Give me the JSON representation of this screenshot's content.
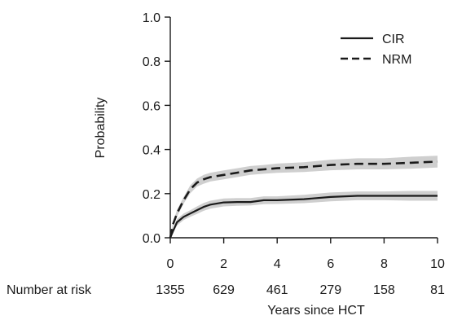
{
  "chart_data": {
    "type": "line",
    "ylabel": "Probability",
    "xlabel": "Years since HCT",
    "xlim": [
      0,
      10
    ],
    "ylim": [
      0,
      1
    ],
    "x_ticks": [
      0,
      2,
      4,
      6,
      8,
      10
    ],
    "y_ticks": [
      0.0,
      0.2,
      0.4,
      0.6,
      0.8,
      1.0
    ],
    "y_tick_labels": [
      "0.0",
      "0.2",
      "0.4",
      "0.6",
      "0.8",
      "1.0"
    ],
    "grid": false,
    "legend_position": "top-right",
    "series": [
      {
        "name": "CIR",
        "line_style": "solid",
        "x": [
          0,
          0.1,
          0.25,
          0.5,
          0.75,
          1.0,
          1.25,
          1.5,
          2.0,
          2.5,
          3.0,
          3.5,
          4.0,
          5.0,
          6.0,
          7.0,
          8.0,
          9.0,
          10.0
        ],
        "y": [
          0.0,
          0.03,
          0.07,
          0.095,
          0.11,
          0.125,
          0.14,
          0.15,
          0.16,
          0.162,
          0.162,
          0.17,
          0.17,
          0.175,
          0.185,
          0.19,
          0.19,
          0.19,
          0.19
        ],
        "ci_lower": [
          0.0,
          0.02,
          0.055,
          0.08,
          0.095,
          0.108,
          0.122,
          0.132,
          0.142,
          0.145,
          0.146,
          0.152,
          0.153,
          0.157,
          0.165,
          0.17,
          0.17,
          0.168,
          0.168
        ],
        "ci_upper": [
          0.0,
          0.04,
          0.085,
          0.11,
          0.125,
          0.142,
          0.158,
          0.168,
          0.178,
          0.18,
          0.18,
          0.188,
          0.188,
          0.195,
          0.205,
          0.21,
          0.21,
          0.212,
          0.212
        ]
      },
      {
        "name": "NRM",
        "line_style": "dashed",
        "x": [
          0,
          0.1,
          0.25,
          0.5,
          0.75,
          1.0,
          1.25,
          1.5,
          2.0,
          2.5,
          3.0,
          3.5,
          4.0,
          5.0,
          6.0,
          7.0,
          8.0,
          9.0,
          10.0
        ],
        "y": [
          0.0,
          0.06,
          0.11,
          0.17,
          0.22,
          0.25,
          0.265,
          0.275,
          0.285,
          0.295,
          0.305,
          0.31,
          0.315,
          0.32,
          0.33,
          0.335,
          0.335,
          0.34,
          0.345
        ],
        "ci_lower": [
          0.0,
          0.05,
          0.095,
          0.155,
          0.202,
          0.232,
          0.245,
          0.255,
          0.265,
          0.275,
          0.285,
          0.29,
          0.294,
          0.298,
          0.306,
          0.31,
          0.31,
          0.313,
          0.318
        ],
        "ci_upper": [
          0.0,
          0.07,
          0.125,
          0.185,
          0.238,
          0.268,
          0.285,
          0.295,
          0.305,
          0.315,
          0.325,
          0.33,
          0.336,
          0.342,
          0.354,
          0.36,
          0.36,
          0.367,
          0.372
        ]
      }
    ],
    "risk_table": {
      "label": "Number at risk",
      "x": [
        0,
        2,
        4,
        6,
        8,
        10
      ],
      "counts": [
        "1355",
        "629",
        "461",
        "279",
        "158",
        "81"
      ]
    },
    "colors": {
      "line": "#1a1a1a",
      "ci_band": "#cfcfcf",
      "axis": "#1a1a1a"
    }
  }
}
